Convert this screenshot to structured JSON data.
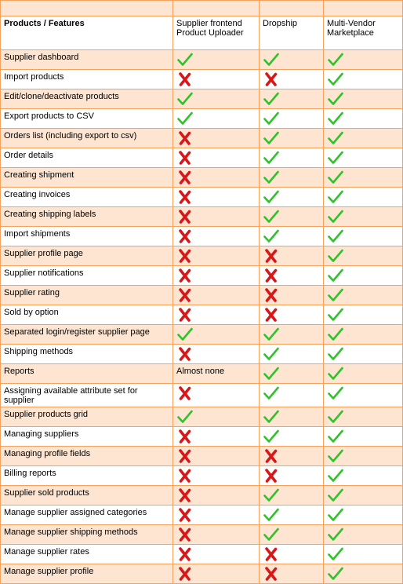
{
  "table": {
    "headers": [
      "Products / Features",
      "Supplier frontend Product Uploader",
      "Dropship",
      "Multi-Vendor Marketplace"
    ],
    "colors": {
      "check": "#2fc22b",
      "cross": "#d81818",
      "stripe": "#fde5d2",
      "border": "#f4a25d"
    },
    "rows": [
      {
        "feature": "Supplier dashboard",
        "values": [
          "check",
          "check",
          "check"
        ]
      },
      {
        "feature": "Import products",
        "values": [
          "cross",
          "cross",
          "check"
        ]
      },
      {
        "feature": "Edit/clone/deactivate products",
        "values": [
          "check",
          "check",
          "check"
        ]
      },
      {
        "feature": "Export products to CSV",
        "values": [
          "check",
          "check",
          "check"
        ]
      },
      {
        "feature": "Orders list (including export to csv)",
        "values": [
          "cross",
          "check",
          "check"
        ]
      },
      {
        "feature": "Order details",
        "values": [
          "cross",
          "check",
          "check"
        ]
      },
      {
        "feature": "Creating shipment",
        "values": [
          "cross",
          "check",
          "check"
        ]
      },
      {
        "feature": "Creating invoices",
        "values": [
          "cross",
          "check",
          "check"
        ]
      },
      {
        "feature": "Creating shipping labels",
        "values": [
          "cross",
          "check",
          "check"
        ]
      },
      {
        "feature": "Import shipments",
        "values": [
          "cross",
          "check",
          "check"
        ]
      },
      {
        "feature": "Supplier profile page",
        "values": [
          "cross",
          "cross",
          "check"
        ]
      },
      {
        "feature": "Supplier notifications",
        "values": [
          "cross",
          "cross",
          "check"
        ]
      },
      {
        "feature": "Supplier rating",
        "values": [
          "cross",
          "cross",
          "check"
        ]
      },
      {
        "feature": "Sold by option",
        "values": [
          "cross",
          "cross",
          "check"
        ]
      },
      {
        "feature": "Separated login/register supplier page",
        "values": [
          "check",
          "check",
          "check"
        ]
      },
      {
        "feature": "Shipping methods",
        "values": [
          "cross",
          "check",
          "check"
        ]
      },
      {
        "feature": "Reports",
        "values": [
          "Almost none",
          "check",
          "check"
        ]
      },
      {
        "feature": "Assigning available attribute set for supplier",
        "values": [
          "cross",
          "check",
          "check"
        ],
        "tall": true
      },
      {
        "feature": "Supplier products grid",
        "values": [
          "check",
          "check",
          "check"
        ]
      },
      {
        "feature": "Managing suppliers",
        "values": [
          "cross",
          "check",
          "check"
        ]
      },
      {
        "feature": "Managing profile fields",
        "values": [
          "cross",
          "cross",
          "check"
        ]
      },
      {
        "feature": "Billing reports",
        "values": [
          "cross",
          "cross",
          "check"
        ]
      },
      {
        "feature": "Supplier sold products",
        "values": [
          "cross",
          "check",
          "check"
        ]
      },
      {
        "feature": "Manage supplier assigned categories",
        "values": [
          "cross",
          "check",
          "check"
        ]
      },
      {
        "feature": "Manage supplier shipping methods",
        "values": [
          "cross",
          "check",
          "check"
        ]
      },
      {
        "feature": "Manage supplier rates",
        "values": [
          "cross",
          "cross",
          "check"
        ]
      },
      {
        "feature": "Manage supplier profile",
        "values": [
          "cross",
          "cross",
          "check"
        ]
      }
    ]
  }
}
